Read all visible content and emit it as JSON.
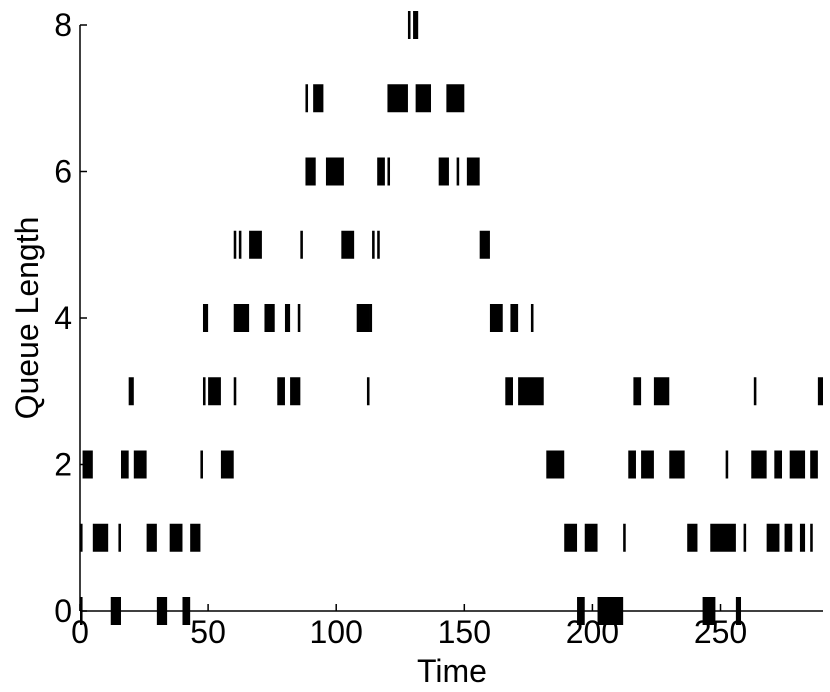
{
  "chart_data": {
    "type": "event-raster",
    "title": "",
    "xlabel": "Time",
    "ylabel": "Queue Length",
    "xlim": [
      0,
      290
    ],
    "ylim": [
      0,
      8
    ],
    "x_ticks": [
      0,
      50,
      100,
      150,
      200,
      250
    ],
    "y_ticks": [
      0,
      2,
      4,
      6,
      8
    ],
    "grid": false,
    "colors": {
      "mark": "#000000",
      "axis": "#000000",
      "background": "#ffffff"
    },
    "levels": [
      {
        "y": 0,
        "intervals": [
          [
            0,
            1
          ],
          [
            12,
            16
          ],
          [
            30,
            34
          ],
          [
            40,
            43
          ],
          [
            194,
            197
          ],
          [
            202,
            212
          ],
          [
            243,
            248
          ],
          [
            256,
            258
          ]
        ]
      },
      {
        "y": 1,
        "intervals": [
          [
            0,
            1
          ],
          [
            5,
            11
          ],
          [
            15,
            16
          ],
          [
            26,
            30
          ],
          [
            35,
            40
          ],
          [
            43,
            47
          ],
          [
            189,
            194
          ],
          [
            197,
            202
          ],
          [
            212,
            213
          ],
          [
            237,
            241
          ],
          [
            246,
            256
          ],
          [
            259,
            260
          ],
          [
            268,
            273
          ],
          [
            275,
            278
          ],
          [
            281,
            283
          ],
          [
            285,
            286
          ]
        ]
      },
      {
        "y": 2,
        "intervals": [
          [
            1,
            5
          ],
          [
            16,
            19
          ],
          [
            21,
            26
          ],
          [
            47,
            48
          ],
          [
            55,
            60
          ],
          [
            182,
            189
          ],
          [
            214,
            217
          ],
          [
            219,
            224
          ],
          [
            230,
            236
          ],
          [
            252,
            253
          ],
          [
            262,
            268
          ],
          [
            271,
            274
          ],
          [
            277,
            283
          ],
          [
            285,
            288
          ]
        ]
      },
      {
        "y": 3,
        "intervals": [
          [
            19,
            21
          ],
          [
            48,
            49
          ],
          [
            50,
            55
          ],
          [
            60,
            61
          ],
          [
            77,
            80
          ],
          [
            82,
            86
          ],
          [
            112,
            113
          ],
          [
            166,
            169
          ],
          [
            171,
            181
          ],
          [
            216,
            219
          ],
          [
            224,
            230
          ],
          [
            263,
            264
          ],
          [
            288,
            290
          ]
        ]
      },
      {
        "y": 4,
        "intervals": [
          [
            48,
            50
          ],
          [
            60,
            66
          ],
          [
            72,
            76
          ],
          [
            80,
            82
          ],
          [
            85,
            86
          ],
          [
            108,
            113
          ],
          [
            113,
            114
          ],
          [
            160,
            165
          ],
          [
            168,
            171
          ],
          [
            176,
            177
          ]
        ]
      },
      {
        "y": 5,
        "intervals": [
          [
            60,
            61
          ],
          [
            62,
            63
          ],
          [
            66,
            71
          ],
          [
            86,
            87
          ],
          [
            102,
            107
          ],
          [
            114,
            115
          ],
          [
            116,
            117
          ],
          [
            156,
            160
          ]
        ]
      },
      {
        "y": 6,
        "intervals": [
          [
            88,
            92
          ],
          [
            96,
            103
          ],
          [
            116,
            119
          ],
          [
            120,
            121
          ],
          [
            140,
            144
          ],
          [
            147,
            148
          ],
          [
            151,
            156
          ]
        ]
      },
      {
        "y": 7,
        "intervals": [
          [
            88,
            89
          ],
          [
            91,
            95
          ],
          [
            120,
            128
          ],
          [
            131,
            137
          ],
          [
            143,
            150
          ]
        ]
      },
      {
        "y": 8,
        "intervals": [
          [
            128,
            129
          ],
          [
            130,
            132
          ]
        ]
      }
    ]
  }
}
